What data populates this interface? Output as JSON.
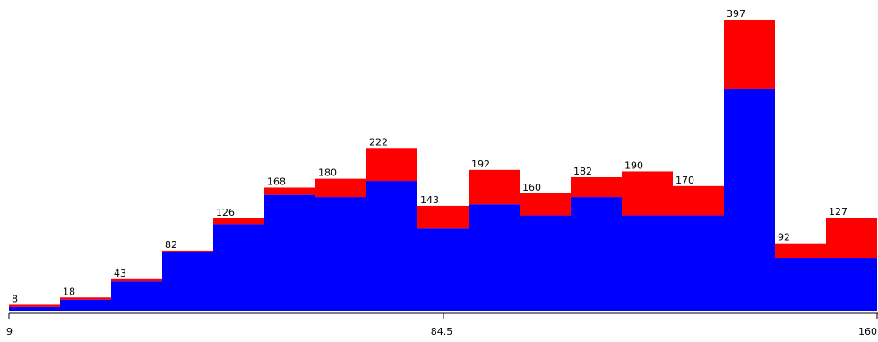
{
  "chart_data": {
    "type": "bar",
    "stacked": true,
    "x_ticks": [
      "9",
      "84.5",
      "160"
    ],
    "xlim": [
      9,
      160
    ],
    "ylim": [
      0,
      410
    ],
    "bins": [
      {
        "total": 8,
        "blue": 5
      },
      {
        "total": 18,
        "blue": 15
      },
      {
        "total": 43,
        "blue": 40
      },
      {
        "total": 82,
        "blue": 80
      },
      {
        "total": 126,
        "blue": 118
      },
      {
        "total": 168,
        "blue": 158
      },
      {
        "total": 180,
        "blue": 155
      },
      {
        "total": 222,
        "blue": 177
      },
      {
        "total": 143,
        "blue": 112
      },
      {
        "total": 192,
        "blue": 145
      },
      {
        "total": 160,
        "blue": 130
      },
      {
        "total": 182,
        "blue": 155
      },
      {
        "total": 190,
        "blue": 130
      },
      {
        "total": 170,
        "blue": 130
      },
      {
        "total": 397,
        "blue": 303
      },
      {
        "total": 92,
        "blue": 72
      },
      {
        "total": 127,
        "blue": 72
      }
    ],
    "colors": {
      "lower": "#0000ff",
      "upper": "#ff0000",
      "axis": "#000000"
    }
  }
}
